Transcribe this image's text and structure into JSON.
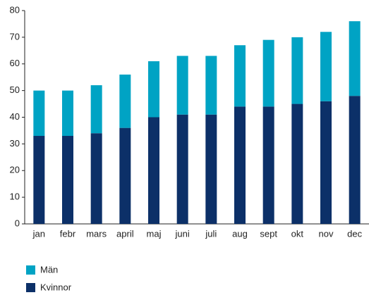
{
  "chart_data": {
    "type": "stacked_bar",
    "categories": [
      "jan",
      "febr",
      "mars",
      "april",
      "maj",
      "juni",
      "juli",
      "aug",
      "sept",
      "okt",
      "nov",
      "dec"
    ],
    "series": [
      {
        "name": "Kvinnor",
        "color": "#0c3068",
        "values": [
          33,
          33,
          34,
          36,
          40,
          41,
          41,
          44,
          44,
          45,
          46,
          48
        ]
      },
      {
        "name": "Män",
        "color": "#00a3c4",
        "values": [
          17,
          17,
          18,
          20,
          21,
          22,
          22,
          23,
          25,
          25,
          26,
          28
        ]
      }
    ],
    "ylim": [
      0,
      80
    ],
    "yticks": [
      0,
      10,
      20,
      30,
      40,
      50,
      60,
      70,
      80
    ],
    "grid": false,
    "legend": "bottom"
  }
}
